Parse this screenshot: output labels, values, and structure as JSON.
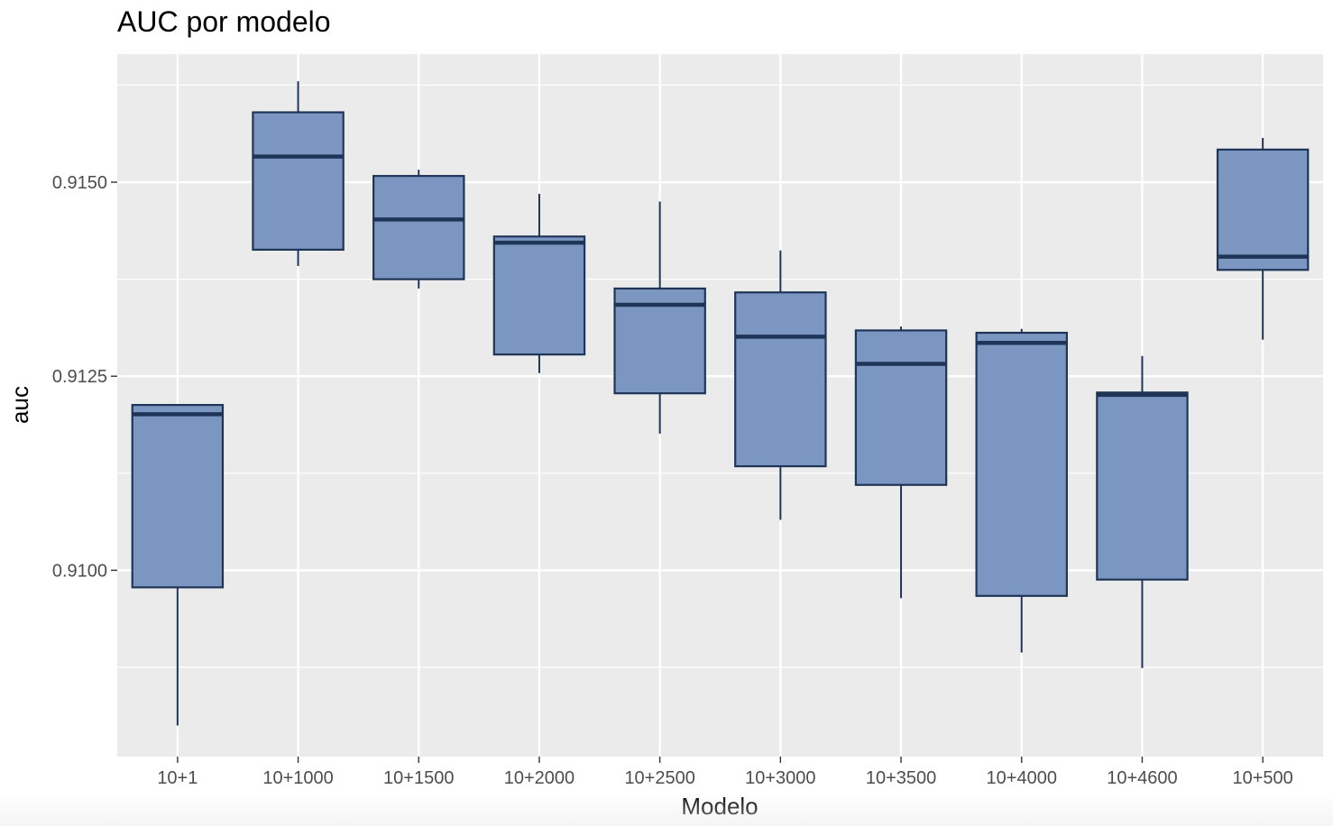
{
  "chart_data": {
    "type": "boxplot",
    "title": "AUC por modelo",
    "xlabel": "Modelo",
    "ylabel": "auc",
    "ylim": [
      0.9076,
      0.91665
    ],
    "yticks": [
      0.91,
      0.9125,
      0.915
    ],
    "ytick_labels": [
      "0.9100",
      "0.9125",
      "0.9150"
    ],
    "grid": true,
    "legend": "none",
    "categories": [
      "10+1",
      "10+1000",
      "10+1500",
      "10+2000",
      "10+2500",
      "10+3000",
      "10+3500",
      "10+4000",
      "10+4600",
      "10+500"
    ],
    "boxes": [
      {
        "category": "10+1",
        "whisker_low": 0.908,
        "q1": 0.90978,
        "median": 0.91201,
        "q3": 0.91213,
        "whisker_high": 0.91213
      },
      {
        "category": "10+1000",
        "whisker_low": 0.91392,
        "q1": 0.91413,
        "median": 0.91533,
        "q3": 0.9159,
        "whisker_high": 0.9163
      },
      {
        "category": "10+1500",
        "whisker_low": 0.91363,
        "q1": 0.91375,
        "median": 0.91452,
        "q3": 0.91508,
        "whisker_high": 0.91516
      },
      {
        "category": "10+2000",
        "whisker_low": 0.91254,
        "q1": 0.91278,
        "median": 0.91422,
        "q3": 0.9143,
        "whisker_high": 0.91485
      },
      {
        "category": "10+2500",
        "whisker_low": 0.91176,
        "q1": 0.91228,
        "median": 0.91342,
        "q3": 0.91363,
        "whisker_high": 0.91475
      },
      {
        "category": "10+3000",
        "whisker_low": 0.91065,
        "q1": 0.91134,
        "median": 0.91301,
        "q3": 0.91358,
        "whisker_high": 0.91412
      },
      {
        "category": "10+3500",
        "whisker_low": 0.90964,
        "q1": 0.9111,
        "median": 0.91266,
        "q3": 0.91309,
        "whisker_high": 0.91314
      },
      {
        "category": "10+4000",
        "whisker_low": 0.90894,
        "q1": 0.90967,
        "median": 0.91293,
        "q3": 0.91306,
        "whisker_high": 0.91311
      },
      {
        "category": "10+4600",
        "whisker_low": 0.90874,
        "q1": 0.90988,
        "median": 0.91226,
        "q3": 0.91229,
        "whisker_high": 0.91276
      },
      {
        "category": "10+500",
        "whisker_low": 0.91297,
        "q1": 0.91387,
        "median": 0.91404,
        "q3": 0.91542,
        "whisker_high": 0.91557
      }
    ],
    "colors": {
      "box_fill": "#7b97c1",
      "box_stroke": "#1f3557",
      "panel_bg": "#ebebeb",
      "grid": "#ffffff",
      "axis_text": "#4d4d4d"
    }
  }
}
